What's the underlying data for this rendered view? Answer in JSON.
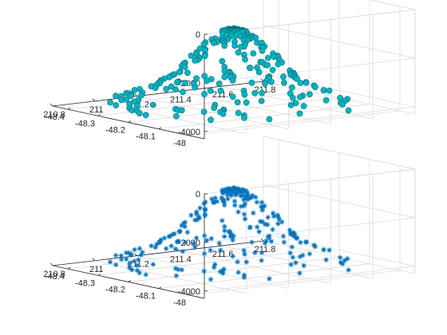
{
  "chart_data": [
    {
      "type": "scatter3",
      "marker": "filled-circle",
      "color": "#00b3c2",
      "edge_color": "#0d6f78",
      "x_ticks": [
        -48,
        -48.1,
        -48.2,
        -48.3,
        -48.4
      ],
      "x_tick_labels": [
        "-48",
        "-48.1",
        "-48.2",
        "-48.3",
        "-48.4"
      ],
      "y_ticks": [
        210.8,
        211,
        211.2,
        211.4,
        211.6,
        211.8
      ],
      "y_tick_labels": [
        "210.8",
        "211",
        "211.2",
        "211.4",
        "211.6",
        "211.8"
      ],
      "z_ticks": [
        0,
        -2000,
        -4000
      ],
      "z_tick_labels": [
        "0",
        "-2000",
        "-4000"
      ],
      "xlim": [
        -48.45,
        -47.95
      ],
      "ylim": [
        210.8,
        211.8
      ],
      "zlim": [
        -4300,
        0
      ],
      "grid": true,
      "surface": {
        "description": "seamount-shaped bathymetry points",
        "base_depth": -4000,
        "peak_depth": -1000,
        "peak_lat": -48.2,
        "peak_lon": 211.3
      }
    },
    {
      "type": "scatter3",
      "marker": "asterisk",
      "color": "#0072bd",
      "x_ticks": [
        -48,
        -48.1,
        -48.2,
        -48.3,
        -48.4
      ],
      "x_tick_labels": [
        "-48",
        "-48.1",
        "-48.2",
        "-48.3",
        "-48.4"
      ],
      "y_ticks": [
        210.8,
        211,
        211.2,
        211.4,
        211.6,
        211.8
      ],
      "y_tick_labels": [
        "210.8",
        "211",
        "211.2",
        "211.4",
        "211.6",
        "211.8"
      ],
      "z_ticks": [
        0,
        -2000,
        -4000
      ],
      "z_tick_labels": [
        "0",
        "-2000",
        "-4000"
      ],
      "xlim": [
        -48.45,
        -47.95
      ],
      "ylim": [
        210.8,
        211.8
      ],
      "zlim": [
        -4300,
        0
      ],
      "grid": true,
      "surface": {
        "description": "seamount-shaped bathymetry points",
        "base_depth": -4000,
        "peak_depth": -1000,
        "peak_lat": -48.2,
        "peak_lon": 211.3
      }
    }
  ]
}
